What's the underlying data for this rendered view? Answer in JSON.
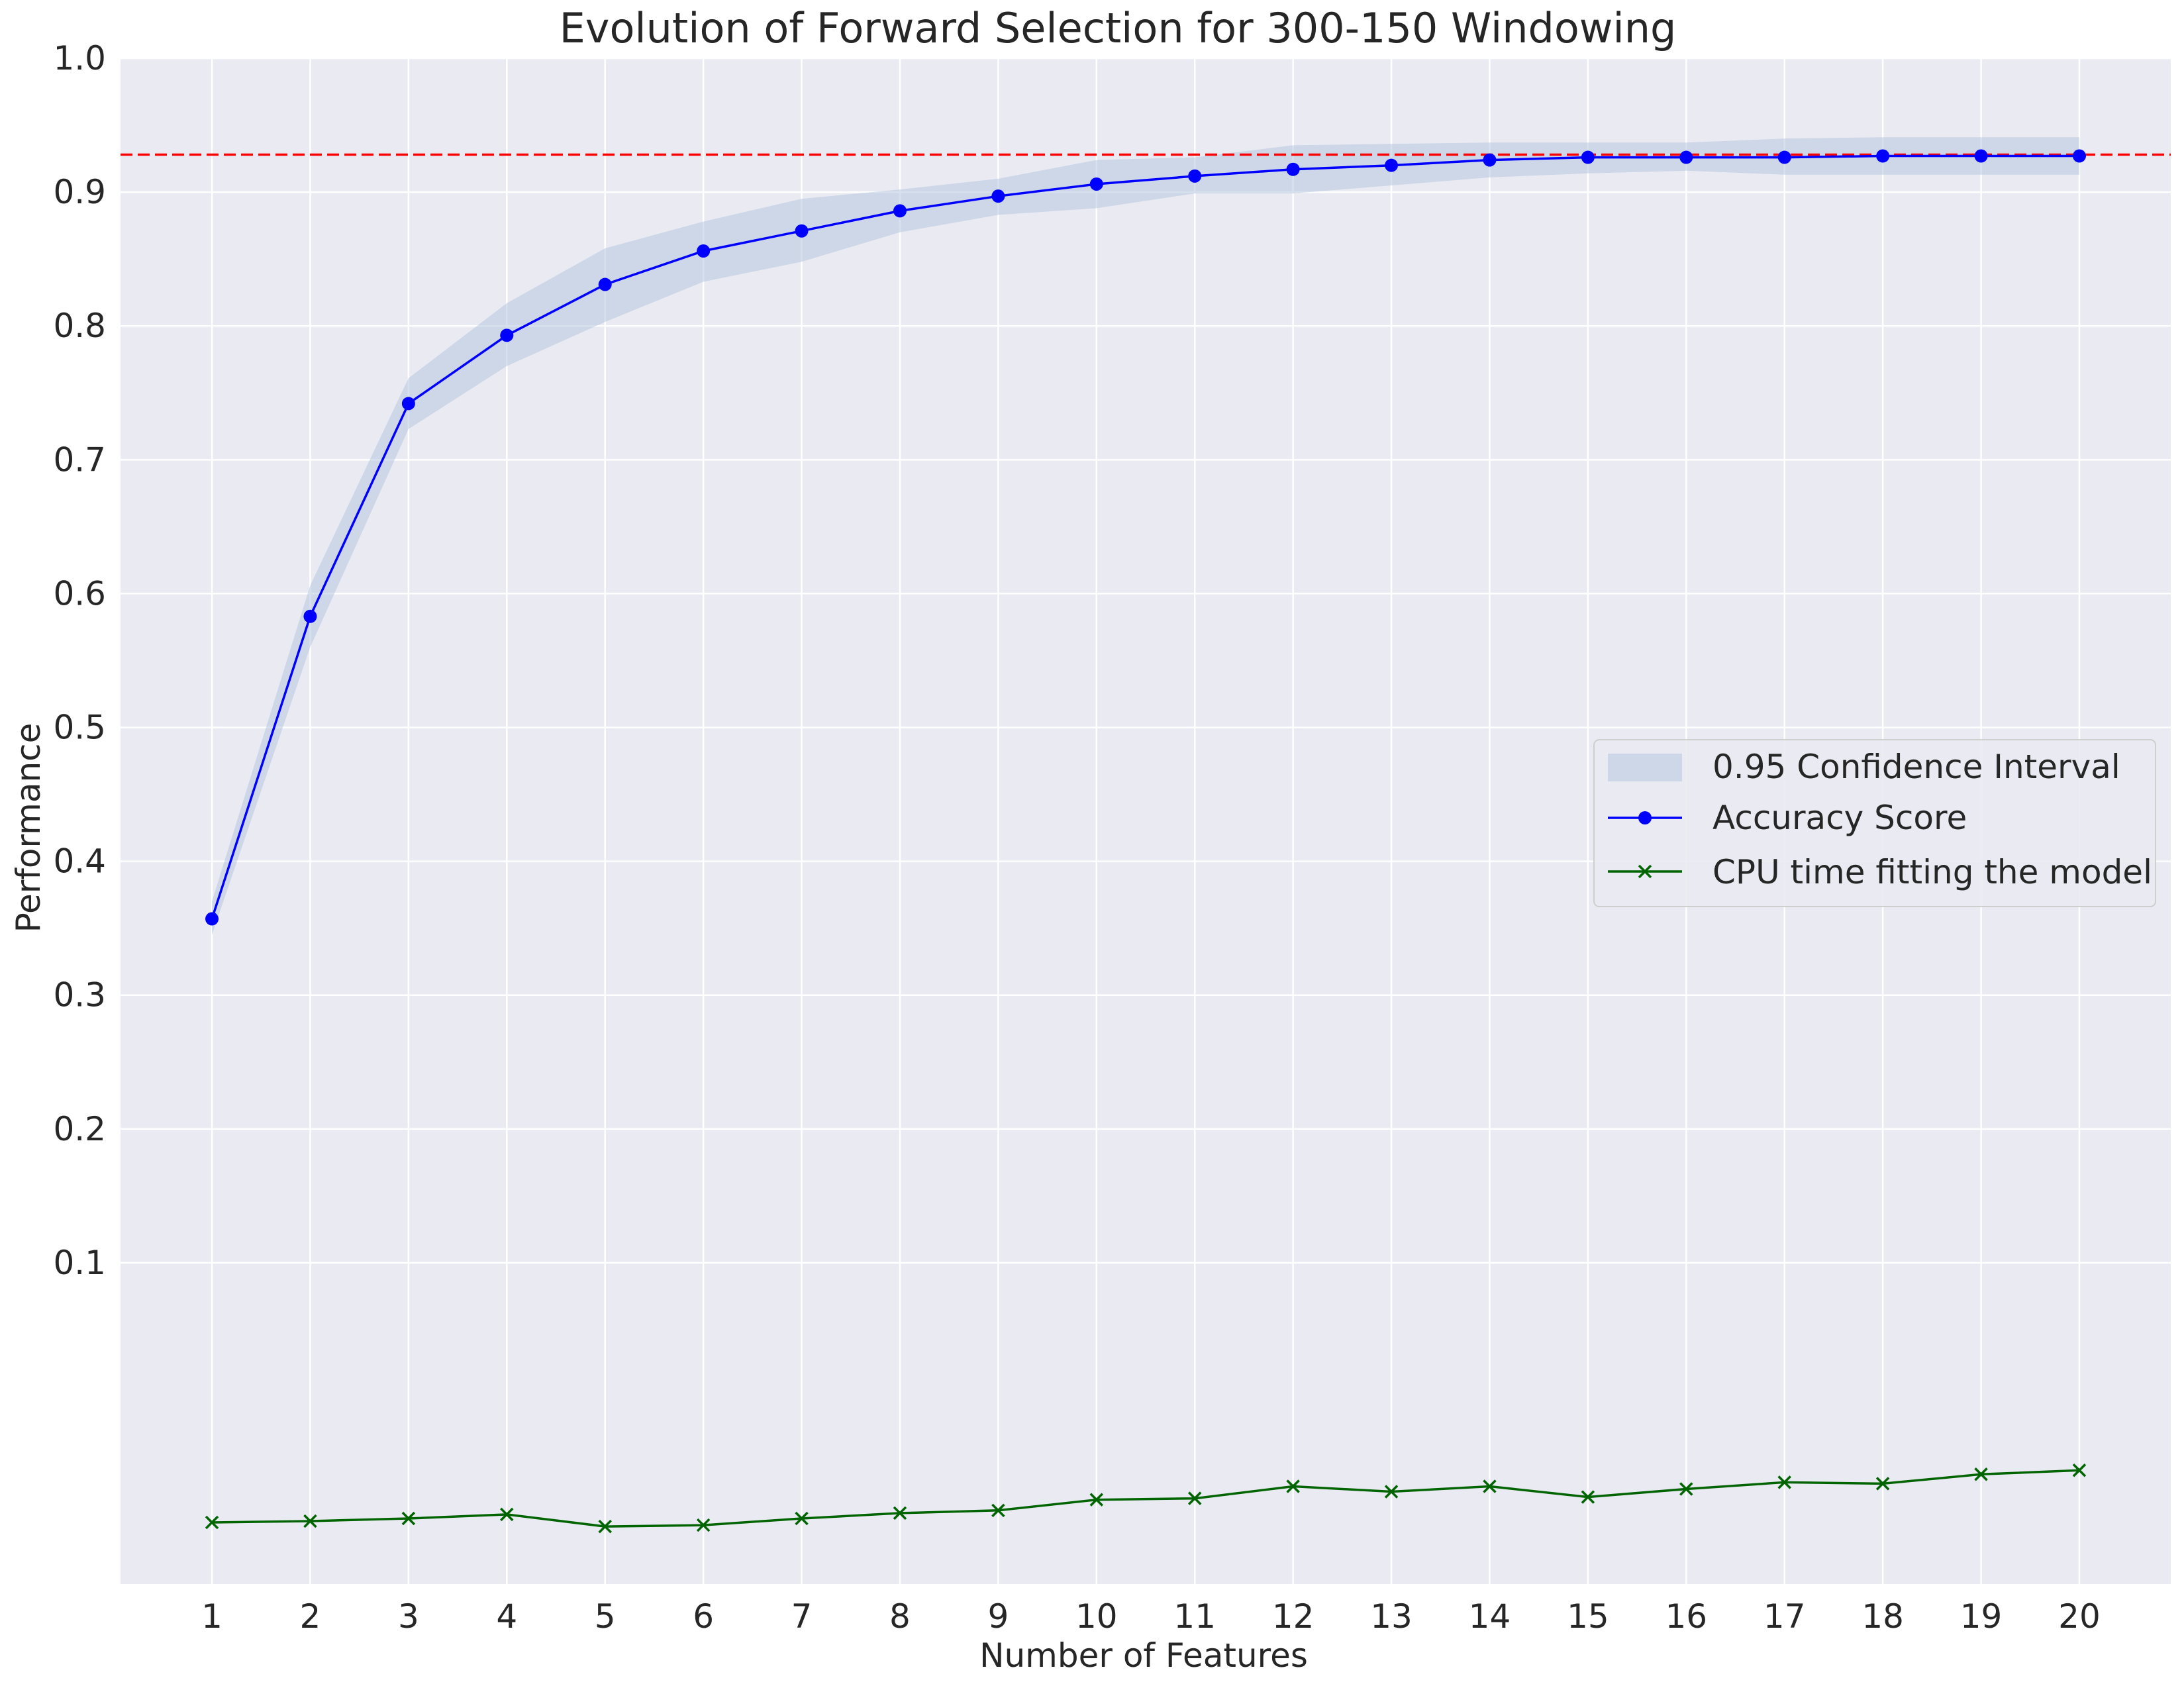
{
  "chart_data": {
    "type": "line",
    "title": "Evolution of Forward Selection for 300-150 Windowing",
    "xlabel": "Number of Features",
    "ylabel": "Performance",
    "x": [
      1,
      2,
      3,
      4,
      5,
      6,
      7,
      8,
      9,
      10,
      11,
      12,
      13,
      14,
      15,
      16,
      17,
      18,
      19,
      20
    ],
    "xticks": [
      "1",
      "2",
      "3",
      "4",
      "5",
      "6",
      "7",
      "8",
      "9",
      "10",
      "11",
      "12",
      "13",
      "14",
      "15",
      "16",
      "17",
      "18",
      "19",
      "20"
    ],
    "xlim": [
      0.07,
      20.93
    ],
    "ylim": [
      -0.14,
      1.0
    ],
    "yticks": [
      0.1,
      0.2,
      0.3,
      0.4,
      0.5,
      0.6,
      0.7,
      0.8,
      0.9,
      1.0
    ],
    "ytick_labels": [
      "0.1",
      "0.2",
      "0.3",
      "0.4",
      "0.5",
      "0.6",
      "0.7",
      "0.8",
      "0.9",
      "1.0"
    ],
    "grid": true,
    "legend_position": "center-right",
    "reference_line": {
      "y": 0.928,
      "color": "#ff0000",
      "style": "dashed"
    },
    "series": [
      {
        "name": "Accuracy Score",
        "color": "#0000ff",
        "marker": "circle",
        "values": [
          0.357,
          0.583,
          0.742,
          0.793,
          0.831,
          0.856,
          0.871,
          0.886,
          0.897,
          0.906,
          0.912,
          0.917,
          0.92,
          0.924,
          0.926,
          0.926,
          0.926,
          0.927,
          0.927,
          0.927
        ]
      },
      {
        "name": "CPU time fitting the model",
        "color": "#006400",
        "marker": "x",
        "values": [
          -0.094,
          -0.093,
          -0.091,
          -0.088,
          -0.097,
          -0.096,
          -0.091,
          -0.087,
          -0.085,
          -0.077,
          -0.076,
          -0.067,
          -0.071,
          -0.067,
          -0.075,
          -0.069,
          -0.064,
          -0.065,
          -0.058,
          -0.055
        ]
      }
    ],
    "confidence_band": {
      "name": "0.95 Confidence Interval",
      "color": "#b0c4de",
      "lower": [
        0.345,
        0.56,
        0.723,
        0.77,
        0.803,
        0.833,
        0.848,
        0.87,
        0.883,
        0.888,
        0.899,
        0.899,
        0.905,
        0.911,
        0.914,
        0.916,
        0.913,
        0.913,
        0.913,
        0.913
      ],
      "upper": [
        0.37,
        0.606,
        0.761,
        0.817,
        0.858,
        0.878,
        0.895,
        0.902,
        0.91,
        0.924,
        0.926,
        0.935,
        0.936,
        0.937,
        0.937,
        0.937,
        0.94,
        0.941,
        0.941,
        0.941
      ]
    }
  }
}
